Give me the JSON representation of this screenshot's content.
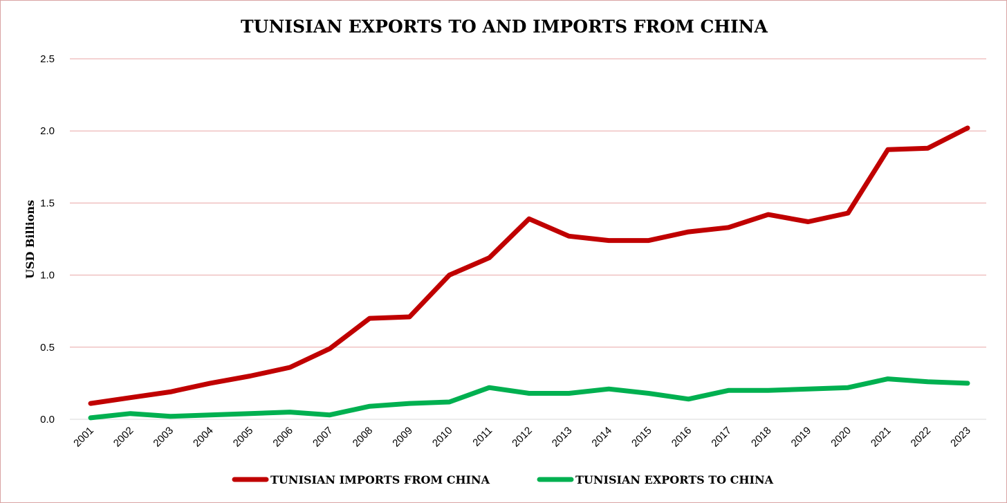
{
  "chart_data": {
    "type": "line",
    "title": "TUNISIAN EXPORTS TO AND IMPORTS FROM CHINA",
    "ylabel": "USD Billions",
    "xlabel": "",
    "ylim": [
      0,
      2.5
    ],
    "yticks": [
      "0.0",
      "0.5",
      "1.0",
      "1.5",
      "2.0",
      "2.5"
    ],
    "ytick_values": [
      0,
      0.5,
      1.0,
      1.5,
      2.0,
      2.5
    ],
    "grid": true,
    "legend_position": "bottom",
    "categories": [
      "2001",
      "2002",
      "2003",
      "2004",
      "2005",
      "2006",
      "2007",
      "2008",
      "2009",
      "2010",
      "2011",
      "2012",
      "2013",
      "2014",
      "2015",
      "2016",
      "2017",
      "2018",
      "2019",
      "2020",
      "2021",
      "2022",
      "2023"
    ],
    "series": [
      {
        "name": "TUNISIAN IMPORTS FROM CHINA",
        "color": "#c00000",
        "values": [
          0.11,
          0.15,
          0.19,
          0.25,
          0.3,
          0.36,
          0.49,
          0.7,
          0.71,
          1.0,
          1.12,
          1.39,
          1.27,
          1.24,
          1.24,
          1.3,
          1.33,
          1.42,
          1.37,
          1.43,
          1.87,
          1.88,
          2.02
        ]
      },
      {
        "name": "TUNISIAN EXPORTS TO CHINA",
        "color": "#00b050",
        "values": [
          0.01,
          0.04,
          0.02,
          0.03,
          0.04,
          0.05,
          0.03,
          0.09,
          0.11,
          0.12,
          0.22,
          0.18,
          0.18,
          0.21,
          0.18,
          0.14,
          0.2,
          0.2,
          0.21,
          0.22,
          0.28,
          0.26,
          0.25
        ]
      }
    ],
    "colors": {
      "gridline": "#e8a5a5",
      "axis": "#d9d9d9",
      "border": "#d9a3a3"
    }
  }
}
